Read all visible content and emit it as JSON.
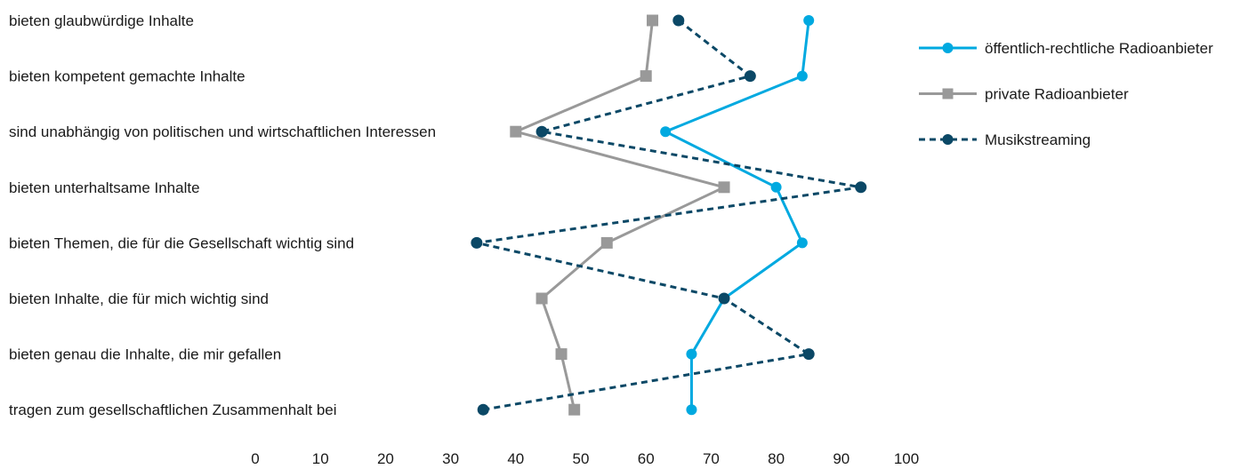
{
  "chart_data": {
    "type": "line",
    "title": "",
    "xlabel": "",
    "ylabel": "",
    "orientation": "horizontal",
    "xlim": [
      0,
      100
    ],
    "x_ticks": [
      "0",
      "10",
      "20",
      "30",
      "40",
      "50",
      "60",
      "70",
      "80",
      "90",
      "100"
    ],
    "grid": false,
    "legend_position": "top-right",
    "categories": [
      "bieten glaubwürdige Inhalte",
      "bieten kompetent gemachte Inhalte",
      "sind unabhängig von politischen und wirtschaftlichen Interessen",
      "bieten unterhaltsame Inhalte",
      "bieten Themen, die für die Gesellschaft wichtig sind",
      "bieten Inhalte, die für mich wichtig sind",
      "bieten genau die Inhalte, die mir gefallen",
      "tragen zum gesellschaftlichen Zusammenhalt bei"
    ],
    "series": [
      {
        "name": "öffentlich-rechtliche Radioanbieter",
        "color": "#00a9e0",
        "marker": "circle",
        "line_style": "solid",
        "values": [
          85,
          84,
          63,
          80,
          84,
          72,
          67,
          67
        ]
      },
      {
        "name": "private Radioanbieter",
        "color": "#999999",
        "marker": "square",
        "line_style": "solid",
        "values": [
          61,
          60,
          40,
          72,
          54,
          44,
          47,
          49
        ]
      },
      {
        "name": "Musikstreaming",
        "color": "#0b4866",
        "marker": "circle",
        "line_style": "dashed",
        "values": [
          65,
          76,
          44,
          93,
          34,
          72,
          85,
          35
        ]
      }
    ]
  }
}
